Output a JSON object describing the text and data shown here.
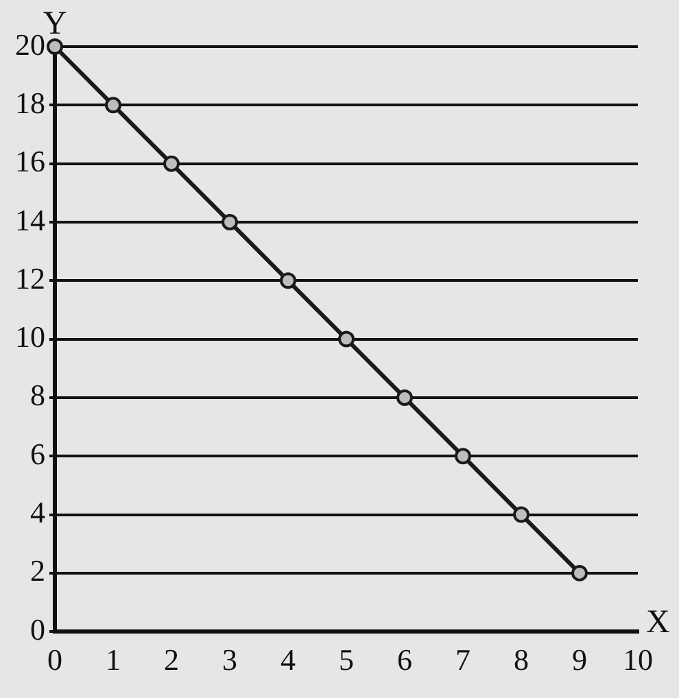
{
  "chart_data": {
    "type": "line",
    "xlabel": "X",
    "ylabel": "Y",
    "x": [
      0,
      1,
      2,
      3,
      4,
      5,
      6,
      7,
      8,
      9
    ],
    "series": [
      {
        "color": "#1a1a1a",
        "values": [
          20,
          18,
          16,
          14,
          12,
          10,
          8,
          6,
          4,
          2
        ]
      }
    ],
    "xlim": [
      0,
      10
    ],
    "xticks": [
      0,
      1,
      2,
      3,
      4,
      5,
      6,
      7,
      8,
      9,
      10
    ],
    "ylim": [
      0,
      20
    ],
    "yticks": [
      0,
      2,
      4,
      6,
      8,
      10,
      12,
      14,
      16,
      18,
      20
    ],
    "grid": "y",
    "legend": false,
    "marker": "circle",
    "line_style": "solid"
  }
}
